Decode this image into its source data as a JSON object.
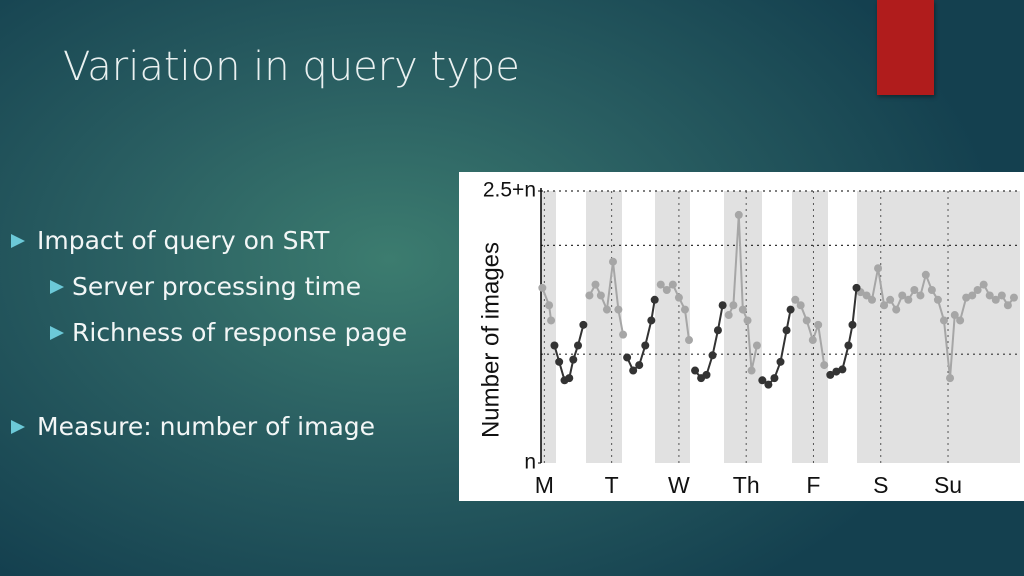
{
  "slide": {
    "title": "Variation in query type",
    "bullets": [
      {
        "text": "Impact of query on SRT",
        "sub": [
          "Server processing time",
          "Richness of response page"
        ]
      },
      {
        "text": "Measure: number of image",
        "sub": []
      }
    ]
  },
  "chart_data": {
    "type": "scatter",
    "y_label": "Number of images",
    "xlim": [
      -0.05,
      7.07
    ],
    "ylim": [
      0,
      2.5
    ],
    "xticks": [
      {
        "value": 0,
        "label": "M"
      },
      {
        "value": 1,
        "label": "T"
      },
      {
        "value": 2,
        "label": "W"
      },
      {
        "value": 3,
        "label": "Th"
      },
      {
        "value": 4,
        "label": "F"
      },
      {
        "value": 5,
        "label": "S"
      },
      {
        "value": 6,
        "label": "Su"
      }
    ],
    "yticks": [
      {
        "value": 0,
        "label": "n"
      },
      {
        "value": 2.5,
        "label": "2.5+n"
      }
    ],
    "gridlines": [
      1,
      2,
      2.5
    ],
    "series": [
      {
        "color": "#a6a6a6",
        "x": [
          -0.03,
          0.07,
          0.1,
          null,
          0.67,
          0.76,
          0.84,
          0.93,
          1.02,
          1.1,
          1.17,
          null,
          1.73,
          1.82,
          1.91,
          2.0,
          2.09,
          2.15,
          null,
          2.74,
          2.81,
          2.89,
          2.95,
          3.02,
          3.08,
          3.16,
          null,
          3.73,
          3.81,
          3.9,
          3.99,
          4.07,
          4.16,
          null,
          4.7,
          4.79,
          4.87,
          4.96,
          5.05,
          5.14,
          5.23,
          5.32,
          5.41,
          5.5,
          5.59,
          5.67,
          5.76,
          5.85,
          5.94,
          6.03,
          6.1,
          6.18,
          6.27,
          6.36,
          6.44,
          6.53,
          6.62,
          6.71,
          6.8,
          6.89,
          6.98
        ],
        "values": [
          1.61,
          1.45,
          1.31,
          null,
          1.54,
          1.64,
          1.54,
          1.41,
          1.85,
          1.41,
          1.18,
          null,
          1.64,
          1.59,
          1.64,
          1.52,
          1.41,
          1.13,
          null,
          1.36,
          1.45,
          2.28,
          1.41,
          1.31,
          0.85,
          1.08,
          null,
          1.5,
          1.45,
          1.31,
          1.13,
          1.27,
          0.9,
          null,
          1.57,
          1.54,
          1.5,
          1.79,
          1.45,
          1.5,
          1.41,
          1.54,
          1.5,
          1.59,
          1.54,
          1.73,
          1.59,
          1.5,
          1.31,
          0.78,
          1.36,
          1.31,
          1.52,
          1.54,
          1.59,
          1.64,
          1.54,
          1.5,
          1.54,
          1.45,
          1.52
        ]
      },
      {
        "color": "#333333",
        "x": [
          0.15,
          0.22,
          0.3,
          0.37,
          0.43,
          0.5,
          0.58,
          null,
          1.23,
          1.32,
          1.41,
          1.5,
          1.59,
          1.64,
          null,
          2.24,
          2.33,
          2.41,
          2.5,
          2.58,
          2.65,
          null,
          3.24,
          3.33,
          3.42,
          3.51,
          3.6,
          3.66,
          null,
          4.25,
          4.34,
          4.43,
          4.52,
          4.58,
          4.64
        ],
        "values": [
          1.08,
          0.93,
          0.76,
          0.78,
          0.95,
          1.08,
          1.27,
          null,
          0.97,
          0.85,
          0.9,
          1.08,
          1.31,
          1.5,
          null,
          0.85,
          0.78,
          0.81,
          0.99,
          1.22,
          1.45,
          null,
          0.76,
          0.72,
          0.78,
          0.93,
          1.22,
          1.41,
          null,
          0.81,
          0.84,
          0.86,
          1.08,
          1.27,
          1.61
        ]
      }
    ]
  }
}
